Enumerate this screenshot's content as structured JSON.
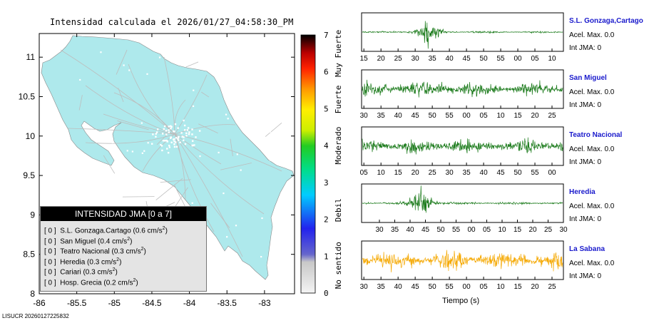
{
  "map": {
    "title": "Intensidad calculada el 2026/01/27_04:58:30_PM",
    "colors": {
      "land": "#aee9ec",
      "roads": "#bdbdbd",
      "sea": "#ffffff"
    },
    "x_ticks": [
      "-86",
      "-85.5",
      "-85",
      "-84.5",
      "-84",
      "-83.5",
      "-83"
    ],
    "y_ticks": [
      "11",
      "10.5",
      "10",
      "9.5",
      "9",
      "8.5",
      "8"
    ],
    "legend": {
      "title": "INTENSIDAD JMA [0 a 7]",
      "rows": [
        {
          "level": "[ 0 ]",
          "text": "S.L. Gonzaga.Cartago (0.6 cm/s",
          "sup": "2",
          "close": ")"
        },
        {
          "level": "[ 0 ]",
          "text": "San Miguel (0.4 cm/s",
          "sup": "2",
          "close": ")"
        },
        {
          "level": "[ 0 ]",
          "text": "Teatro Nacional (0.3 cm/s",
          "sup": "2",
          "close": ")"
        },
        {
          "level": "[ 0 ]",
          "text": "Heredia (0.3 cm/s",
          "sup": "2",
          "close": ")"
        },
        {
          "level": "[ 0 ]",
          "text": "Cariari (0.3 cm/s",
          "sup": "2",
          "close": ")"
        },
        {
          "level": "[ 0 ]",
          "text": "Hosp. Grecia (0.2 cm/s",
          "sup": "2",
          "close": ")"
        }
      ]
    }
  },
  "colorbar": {
    "ticks": [
      "7",
      "6",
      "5",
      "4",
      "3",
      "2",
      "1",
      "0"
    ],
    "category_labels": [
      "Muy Fuerte",
      "Fuerte",
      "Moderado",
      "Debil",
      "No sentido"
    ]
  },
  "stations": [
    {
      "name": "S.L. Gonzaga,Cartago",
      "accel": "Acel. Max. 0.0",
      "int": "Int JMA: 0",
      "color": "#1a7a1a",
      "ticks": [
        "15",
        "20",
        "25",
        "30",
        "35",
        "40",
        "45",
        "50",
        "55",
        "00",
        "05",
        "10"
      ]
    },
    {
      "name": "San Miguel",
      "accel": "Acel. Max. 0.0",
      "int": "Int JMA: 0",
      "color": "#1a7a1a",
      "ticks": [
        "30",
        "35",
        "40",
        "45",
        "50",
        "55",
        "00",
        "05",
        "10",
        "15",
        "20",
        "25"
      ]
    },
    {
      "name": "Teatro Nacional",
      "accel": "Acel. Max. 0.0",
      "int": "Int JMA: 0",
      "color": "#1a7a1a",
      "ticks": [
        "05",
        "10",
        "15",
        "20",
        "25",
        "30",
        "35",
        "40",
        "45",
        "50",
        "55",
        "00"
      ]
    },
    {
      "name": "Heredia",
      "accel": "Acel. Max. 0.0",
      "int": "Int JMA: 0",
      "color": "#1a7a1a",
      "ticks": [
        "30",
        "35",
        "40",
        "45",
        "50",
        "55",
        "00",
        "05",
        "10",
        "15",
        "20",
        "25",
        "30"
      ]
    },
    {
      "name": "La Sabana",
      "accel": "Acel. Max. 0.0",
      "int": "Int JMA: 0",
      "color": "#f5a800",
      "ticks": [
        "30",
        "35",
        "40",
        "45",
        "50",
        "55",
        "00",
        "05",
        "10",
        "15",
        "20",
        "25"
      ]
    }
  ],
  "time_axis_label": "Tiempo (s)",
  "footer": "LISUCR 20260127225832",
  "chart_data": [
    {
      "type": "scatter",
      "title": "Intensidad calculada el 2026/01/27_04:58:30_PM",
      "xlim": [
        -86,
        -82.6
      ],
      "ylim": [
        8,
        11.3
      ],
      "x_ticks": [
        -86,
        -85.5,
        -85,
        -84.5,
        -84,
        -83.5,
        -83
      ],
      "y_ticks": [
        8,
        8.5,
        9,
        9.5,
        10,
        10.5,
        11
      ],
      "legend_placement": "bottom-left",
      "colorbar": {
        "min": 0,
        "max": 7,
        "categories": [
          "Muy Fuerte",
          "Fuerte",
          "Moderado",
          "Debil",
          "No sentido"
        ]
      }
    },
    {
      "type": "line",
      "xlabel": "Tiempo (s)",
      "series": [
        {
          "name": "S.L. Gonzaga,Cartago",
          "burst": true
        },
        {
          "name": "San Miguel",
          "burst": false
        },
        {
          "name": "Teatro Nacional",
          "burst": false
        },
        {
          "name": "Heredia",
          "burst": true
        },
        {
          "name": "La Sabana",
          "burst": false
        }
      ]
    }
  ]
}
